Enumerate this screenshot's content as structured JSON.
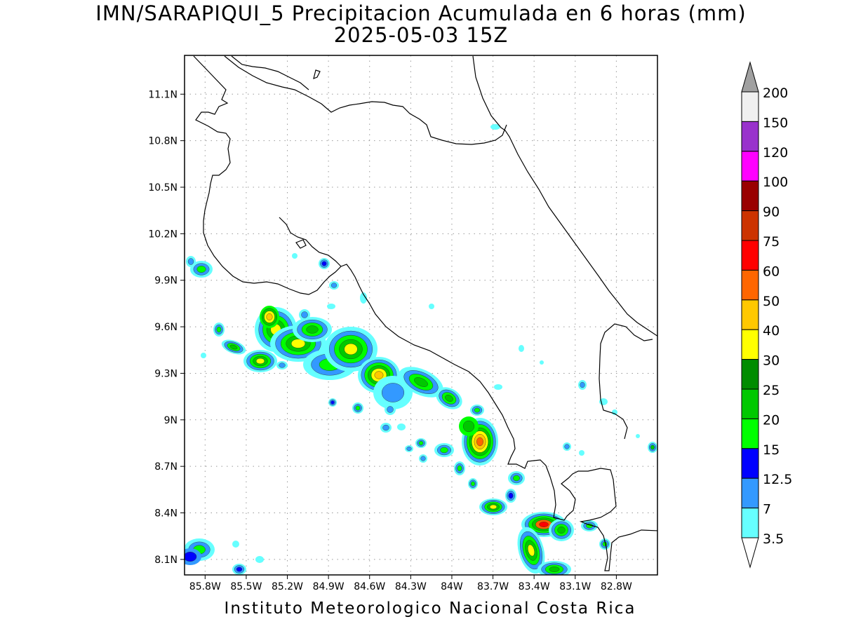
{
  "header": {
    "title_line1": "IMN/SARAPIQUI_5 Precipitacion Acumulada en 6 horas (mm)",
    "title_line2": "2025-05-03 15Z"
  },
  "footer": {
    "text": "Instituto Meteorologico Nacional Costa Rica"
  },
  "axes": {
    "lat_labels": [
      "11.1N",
      "10.8N",
      "10.5N",
      "10.2N",
      "9.9N",
      "9.6N",
      "9.3N",
      "9N",
      "8.7N",
      "8.4N",
      "8.1N"
    ],
    "lon_labels": [
      "85.8W",
      "85.5W",
      "85.2W",
      "84.9W",
      "84.6W",
      "84.3W",
      "84W",
      "83.7W",
      "83.4W",
      "83.1W",
      "82.8W"
    ],
    "lat_range": [
      8.0,
      11.35
    ],
    "lon_range": [
      -85.95,
      -82.5
    ],
    "grid": "dotted"
  },
  "colorbar": {
    "labels": [
      "200",
      "150",
      "120",
      "100",
      "90",
      "75",
      "60",
      "50",
      "40",
      "30",
      "25",
      "20",
      "15",
      "12.5",
      "7",
      "3.5"
    ],
    "colors": [
      "#f0f0f0",
      "#9932cc",
      "#ff00ff",
      "#990000",
      "#cc3300",
      "#ff0000",
      "#ff6600",
      "#ffc800",
      "#ffff00",
      "#008c00",
      "#00c800",
      "#00ff00",
      "#0000ff",
      "#3399ff",
      "#66ffff"
    ],
    "over_color": "#a0a0a0",
    "under_color": "#ffffff"
  },
  "precip_colors": {
    "c35": "#66ffff",
    "c7": "#3399ff",
    "c125": "#0000ff",
    "c15": "#00ff00",
    "c20": "#00c800",
    "c25": "#008c00",
    "c30": "#ffff00",
    "c40": "#ffc800",
    "c50": "#ff6600",
    "c60": "#ff0000"
  }
}
